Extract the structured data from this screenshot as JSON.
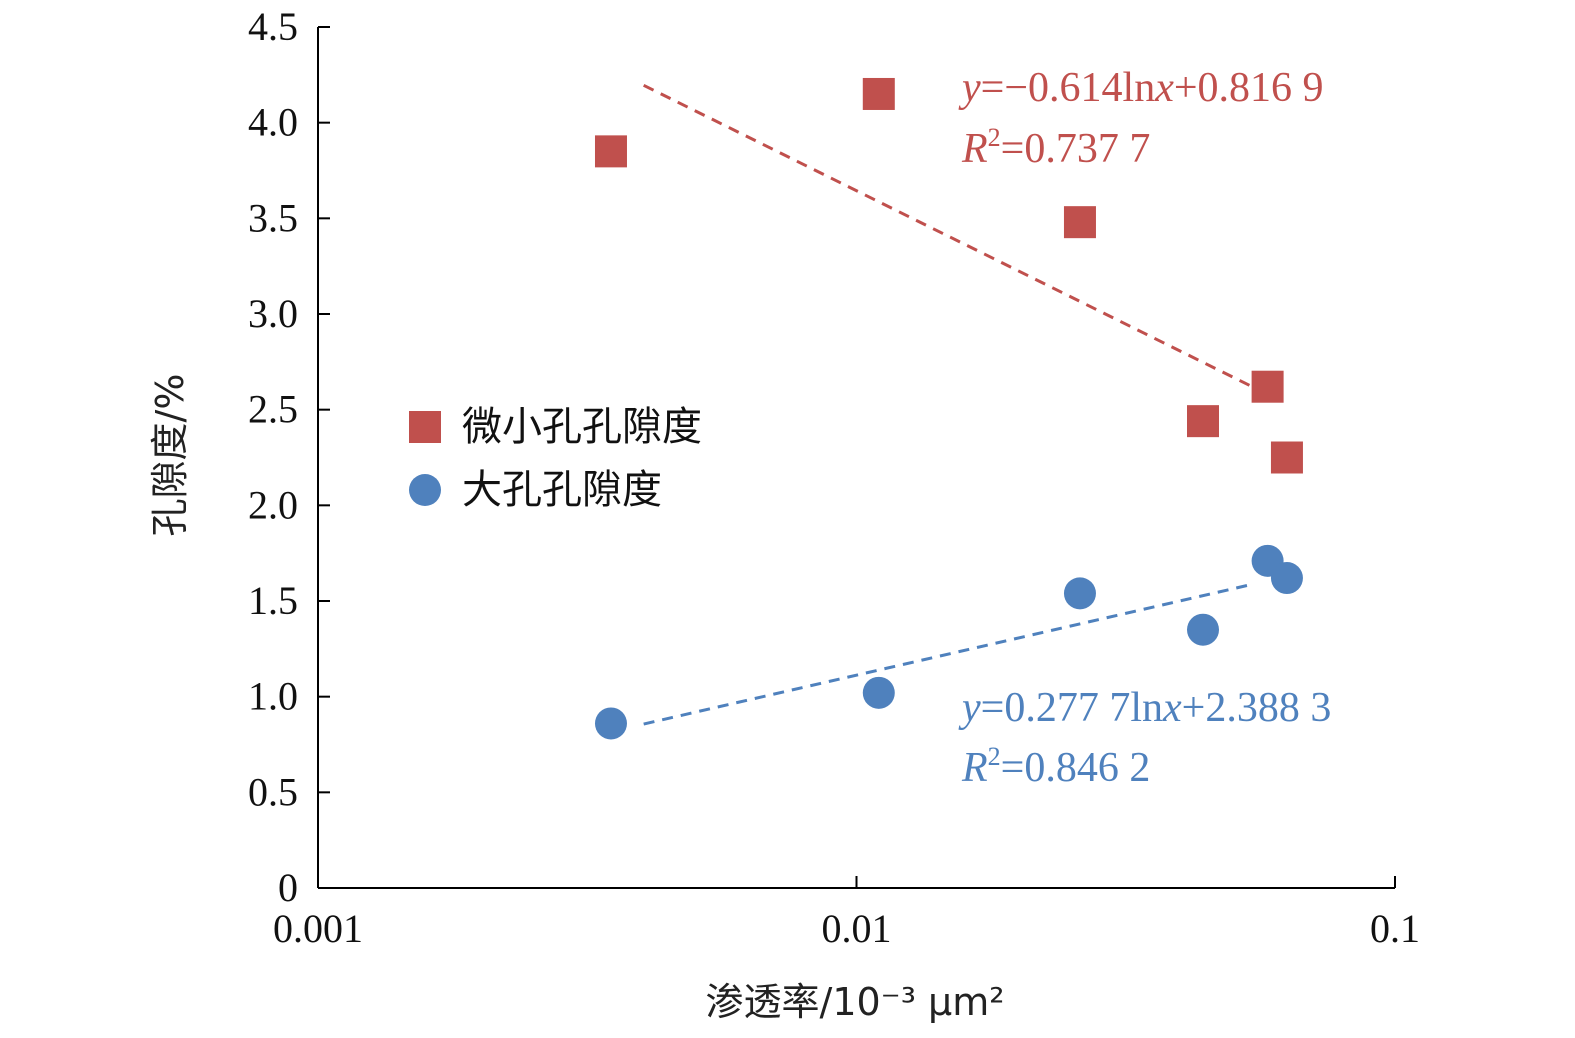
{
  "chart_data": {
    "type": "scatter",
    "x_scale": "log",
    "xlim": [
      0.001,
      0.1
    ],
    "ylim": [
      0,
      4.5
    ],
    "xlabel": "渗透率/10⁻³ μm²",
    "ylabel": "孔隙度/%",
    "x_ticks": [
      "0.001",
      "0.01",
      "0.1"
    ],
    "y_ticks": [
      "0",
      "0.5",
      "1.0",
      "1.5",
      "2.0",
      "2.5",
      "3.0",
      "3.5",
      "4.0",
      "4.5"
    ],
    "grid": false,
    "legend_position": "left",
    "series": [
      {
        "name": "微小孔孔隙度",
        "marker": "square",
        "color": "#c0504d",
        "x": [
          0.0035,
          0.011,
          0.026,
          0.044,
          0.058,
          0.063
        ],
        "y": [
          3.85,
          4.15,
          3.48,
          2.44,
          2.62,
          2.25
        ],
        "trendline": {
          "type": "log",
          "x_range": [
            0.0035,
            0.058
          ],
          "equation": "y=−0.614lnx+0.816 9",
          "r2": "R2=0.737 7"
        }
      },
      {
        "name": "大孔孔隙度",
        "marker": "circle",
        "color": "#4f81bd",
        "x": [
          0.0035,
          0.011,
          0.026,
          0.044,
          0.058,
          0.063
        ],
        "y": [
          0.86,
          1.02,
          1.54,
          1.35,
          1.71,
          1.62
        ],
        "trendline": {
          "type": "log",
          "x_range": [
            0.0035,
            0.058
          ],
          "equation": "y=0.277 7lnx+2.388 3",
          "r2": "R2=0.846 2"
        }
      }
    ],
    "annotations": {
      "micro": {
        "y_prefix": "y",
        "y_rest": "=−0.614ln",
        "x_var": "x",
        "eq_tail": "+0.816 9",
        "r_var": "R",
        "r_sup": "2",
        "r_tail": "=0.737 7"
      },
      "macro": {
        "y_prefix": "y",
        "y_rest": "=0.277 7ln",
        "x_var": "x",
        "eq_tail": "+2.388 3",
        "r_var": "R",
        "r_sup": "2",
        "r_tail": "=0.846 2"
      }
    }
  }
}
